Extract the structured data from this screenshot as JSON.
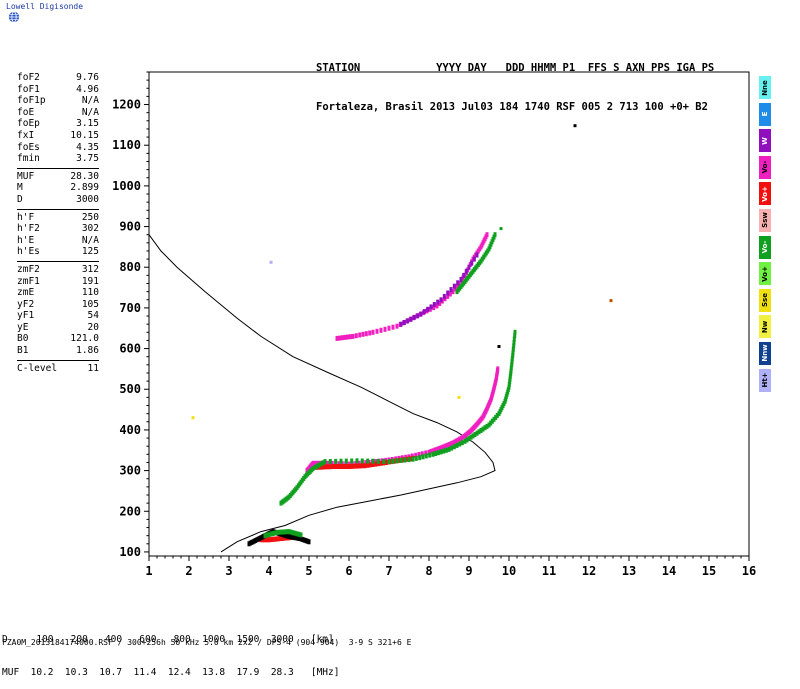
{
  "brand": {
    "text": "Lowell Digisonde",
    "logo_icon": "globe-icon"
  },
  "header": {
    "labels": "STATION            YYYY DAY   DDD HHMM P1  FFS S AXN PPS IGA PS",
    "values": "Fortaleza, Brasil 2013 Jul03 184 1740 RSF 005 2 713 100 +0+ B2"
  },
  "params": {
    "groups": [
      [
        {
          "label": "foF2",
          "value": "9.76"
        },
        {
          "label": "foF1",
          "value": "4.96"
        },
        {
          "label": "foF1p",
          "value": "N/A"
        },
        {
          "label": "foE",
          "value": "N/A"
        },
        {
          "label": "foEp",
          "value": "3.15"
        },
        {
          "label": "fxI",
          "value": "10.15"
        },
        {
          "label": "foEs",
          "value": "4.35"
        },
        {
          "label": "fmin",
          "value": "3.75"
        }
      ],
      [
        {
          "label": "MUF",
          "value": "28.30"
        },
        {
          "label": "M",
          "value": "2.899"
        },
        {
          "label": "D",
          "value": "3000"
        }
      ],
      [
        {
          "label": "h'F",
          "value": "250"
        },
        {
          "label": "h'F2",
          "value": "302"
        },
        {
          "label": "h'E",
          "value": "N/A"
        },
        {
          "label": "h'Es",
          "value": "125"
        }
      ],
      [
        {
          "label": "zmF2",
          "value": "312"
        },
        {
          "label": "zmF1",
          "value": "191"
        },
        {
          "label": "zmE",
          "value": "110"
        },
        {
          "label": "yF2",
          "value": "105"
        },
        {
          "label": "yF1",
          "value": "54"
        },
        {
          "label": "yE",
          "value": "20"
        },
        {
          "label": "B0",
          "value": "121.0"
        },
        {
          "label": "B1",
          "value": "1.86"
        }
      ],
      [
        {
          "label": "C-level",
          "value": "11"
        }
      ]
    ]
  },
  "legend": [
    {
      "label": "Nne",
      "color": "#66f0f0"
    },
    {
      "label": "E",
      "color": "#1e8ce8"
    },
    {
      "label": "W",
      "color": "#9010c0"
    },
    {
      "label": "Vo-",
      "color": "#f020c0"
    },
    {
      "label": "Vo+",
      "color": "#f01010"
    },
    {
      "label": "Ssw",
      "color": "#f8b0b0"
    },
    {
      "label": "Vo-",
      "color": "#10a020"
    },
    {
      "label": "Vo+",
      "color": "#70f040"
    },
    {
      "label": "Sse",
      "color": "#f0e010"
    },
    {
      "label": "Nw",
      "color": "#f0f040"
    },
    {
      "label": "Nnw",
      "color": "#104090"
    },
    {
      "label": "Ht+",
      "color": "#b0b0f8"
    }
  ],
  "chart_data": {
    "type": "scatter",
    "xlabel": "",
    "ylabel": "",
    "xlim": [
      1,
      16
    ],
    "ylim": [
      90,
      1280
    ],
    "xticks": [
      "1",
      "2",
      "3",
      "4",
      "5",
      "6",
      "7",
      "8",
      "9",
      "10",
      "11",
      "12",
      "13",
      "14",
      "15",
      "16"
    ],
    "yticks": [
      "100",
      "200",
      "300",
      "400",
      "500",
      "600",
      "700",
      "800",
      "900",
      "1000",
      "1100",
      "1200"
    ],
    "grid": false,
    "profile": [
      [
        2.8,
        100
      ],
      [
        3.2,
        125
      ],
      [
        3.8,
        150
      ],
      [
        4.4,
        165
      ],
      [
        5.0,
        190
      ],
      [
        5.7,
        210
      ],
      [
        6.5,
        225
      ],
      [
        7.3,
        240
      ],
      [
        8.0,
        255
      ],
      [
        8.7,
        270
      ],
      [
        9.3,
        285
      ],
      [
        9.65,
        300
      ],
      [
        9.6,
        320
      ],
      [
        9.4,
        345
      ],
      [
        9.1,
        370
      ],
      [
        8.7,
        395
      ],
      [
        8.2,
        418
      ],
      [
        7.6,
        440
      ],
      [
        7.0,
        470
      ],
      [
        6.3,
        505
      ],
      [
        5.5,
        540
      ],
      [
        4.6,
        580
      ],
      [
        3.8,
        630
      ],
      [
        3.2,
        675
      ],
      [
        2.4,
        740
      ],
      [
        1.7,
        800
      ],
      [
        1.3,
        840
      ],
      [
        1.0,
        880
      ]
    ],
    "traces": [
      {
        "color": "#f020c0",
        "points": [
          [
            4.95,
            300
          ],
          [
            5.1,
            318
          ],
          [
            5.5,
            318
          ],
          [
            6.0,
            316
          ],
          [
            6.5,
            320
          ],
          [
            7.0,
            326
          ],
          [
            7.5,
            334
          ],
          [
            8.0,
            345
          ],
          [
            8.3,
            356
          ],
          [
            8.6,
            368
          ],
          [
            8.85,
            382
          ],
          [
            9.05,
            398
          ],
          [
            9.2,
            414
          ],
          [
            9.35,
            432
          ],
          [
            9.45,
            452
          ],
          [
            9.55,
            475
          ],
          [
            9.62,
            500
          ],
          [
            9.68,
            525
          ],
          [
            9.72,
            550
          ]
        ]
      },
      {
        "color": "#f01010",
        "points": [
          [
            5.2,
            308
          ],
          [
            5.6,
            310
          ],
          [
            6.0,
            310
          ],
          [
            6.4,
            312
          ],
          [
            6.8,
            318
          ],
          [
            7.2,
            324
          ],
          [
            7.6,
            330
          ]
        ]
      },
      {
        "color": "#10a020",
        "points": [
          [
            4.3,
            220
          ],
          [
            4.5,
            235
          ],
          [
            4.7,
            258
          ],
          [
            4.9,
            285
          ],
          [
            5.1,
            305
          ],
          [
            5.4,
            322
          ],
          [
            6.2,
            324
          ],
          [
            7.0,
            322
          ],
          [
            7.6,
            328
          ],
          [
            8.1,
            340
          ],
          [
            8.5,
            352
          ],
          [
            8.9,
            372
          ],
          [
            9.2,
            392
          ],
          [
            9.5,
            412
          ],
          [
            9.75,
            440
          ],
          [
            9.9,
            470
          ],
          [
            10.0,
            505
          ],
          [
            10.05,
            545
          ],
          [
            10.1,
            590
          ],
          [
            10.15,
            640
          ]
        ]
      },
      {
        "color": "#f020c0",
        "points": [
          [
            5.7,
            625
          ],
          [
            6.1,
            630
          ],
          [
            6.6,
            640
          ],
          [
            7.2,
            655
          ],
          [
            7.7,
            680
          ],
          [
            8.2,
            705
          ],
          [
            8.6,
            740
          ],
          [
            8.9,
            780
          ],
          [
            9.1,
            820
          ],
          [
            9.3,
            850
          ],
          [
            9.45,
            880
          ]
        ]
      },
      {
        "color": "#10a020",
        "points": [
          [
            8.7,
            740
          ],
          [
            8.9,
            765
          ],
          [
            9.1,
            790
          ],
          [
            9.3,
            815
          ],
          [
            9.5,
            845
          ],
          [
            9.65,
            880
          ]
        ]
      },
      {
        "color": "#9010c0",
        "points": [
          [
            7.3,
            660
          ],
          [
            7.8,
            685
          ],
          [
            8.3,
            720
          ],
          [
            8.8,
            770
          ],
          [
            9.2,
            830
          ]
        ]
      },
      {
        "color": "#f01010",
        "points": [
          [
            3.8,
            130
          ],
          [
            4.0,
            130
          ],
          [
            4.2,
            132
          ],
          [
            4.4,
            134
          ],
          [
            4.6,
            136
          ]
        ]
      },
      {
        "color": "#000000",
        "points": [
          [
            3.5,
            120
          ],
          [
            3.7,
            130
          ],
          [
            3.9,
            140
          ],
          [
            4.1,
            150
          ],
          [
            4.3,
            144
          ],
          [
            4.5,
            138
          ],
          [
            4.8,
            132
          ],
          [
            5.0,
            125
          ]
        ]
      },
      {
        "color": "#10a020",
        "points": [
          [
            3.9,
            140
          ],
          [
            4.2,
            148
          ],
          [
            4.5,
            150
          ],
          [
            4.8,
            142
          ]
        ]
      }
    ],
    "isolated": [
      {
        "x": 11.65,
        "y": 1148,
        "color": "#000000"
      },
      {
        "x": 12.55,
        "y": 718,
        "color": "#c05000"
      },
      {
        "x": 2.1,
        "y": 430,
        "color": "#f0e010"
      },
      {
        "x": 4.05,
        "y": 812,
        "color": "#b0b0f8"
      },
      {
        "x": 9.8,
        "y": 895,
        "color": "#10a020"
      },
      {
        "x": 9.75,
        "y": 605,
        "color": "#000000"
      },
      {
        "x": 8.75,
        "y": 480,
        "color": "#f0e010"
      }
    ]
  },
  "muf_table": {
    "row1": "D     100   200   400   600   800  1000  1500  3000   [km]",
    "row2": "MUF  10.2  10.3  10.7  11.4  12.4  13.8  17.9  28.3   [MHz]"
  },
  "footer": "FZA0M_2013184174000.RSF / 300+256h 50 kHz 5.0 km 2x2 / DPS-4 (904-904)  3-9 S 321+6 E"
}
